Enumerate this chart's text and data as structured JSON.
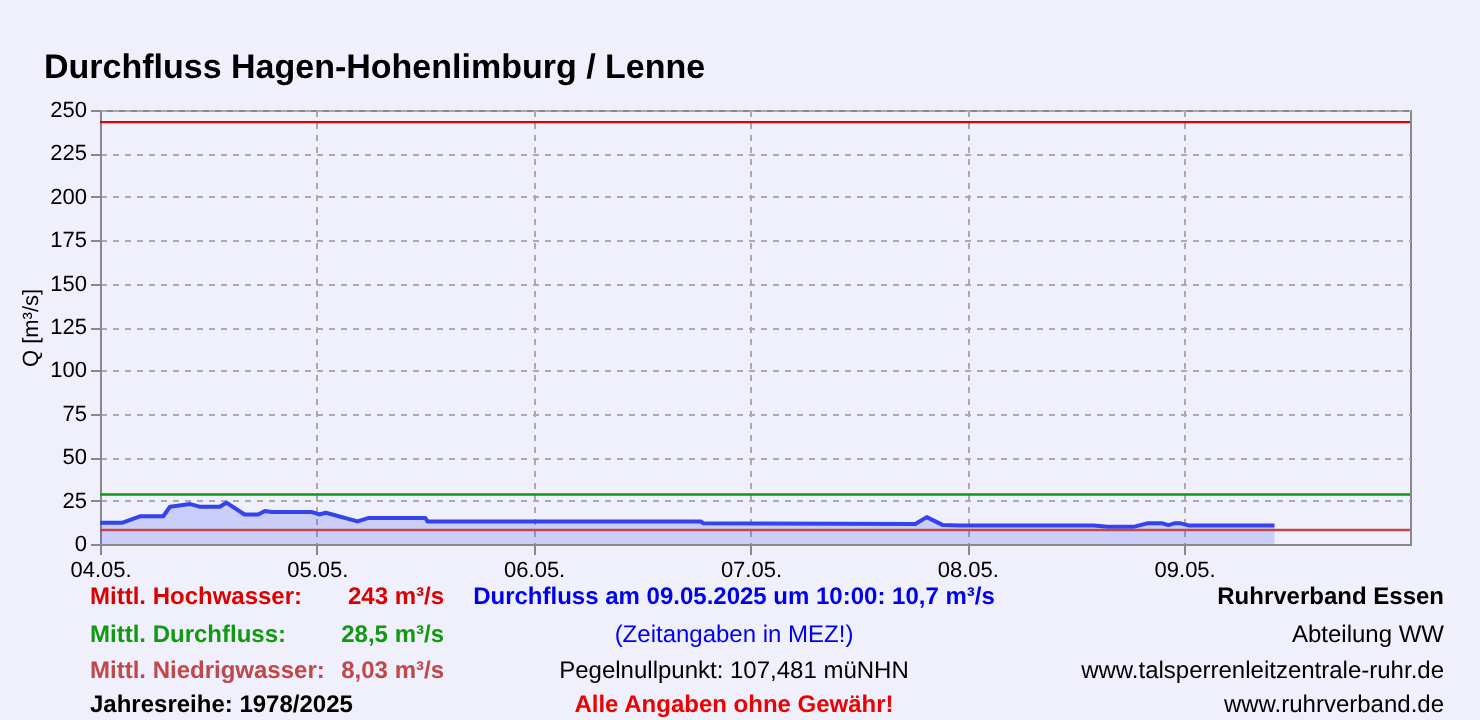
{
  "chart_data": {
    "type": "area",
    "title": "Durchfluss Hagen-Hohenlimburg / Lenne",
    "ylabel": "Q [m³/s]",
    "x": [
      "2025-05-04T00:00",
      "2025-05-04T02:30",
      "2025-05-04T04:30",
      "2025-05-04T07:00",
      "2025-05-04T07:45",
      "2025-05-04T10:00",
      "2025-05-04T11:00",
      "2025-05-04T13:15",
      "2025-05-04T14:00",
      "2025-05-04T16:00",
      "2025-05-04T17:30",
      "2025-05-04T18:15",
      "2025-05-04T19:00",
      "2025-05-04T23:30",
      "2025-05-05T00:15",
      "2025-05-05T01:00",
      "2025-05-05T04:30",
      "2025-05-05T05:45",
      "2025-05-05T12:00",
      "2025-05-05T12:15",
      "2025-05-06T18:30",
      "2025-05-06T18:45",
      "2025-05-07T18:15",
      "2025-05-07T19:30",
      "2025-05-07T21:15",
      "2025-05-07T23:15",
      "2025-05-08T14:00",
      "2025-05-08T15:30",
      "2025-05-08T18:30",
      "2025-05-08T20:00",
      "2025-05-08T21:30",
      "2025-05-08T22:15",
      "2025-05-08T23:00",
      "2025-05-08T23:30",
      "2025-05-09T00:30",
      "2025-05-09T10:00"
    ],
    "series": [
      {
        "color": "#3344ee",
        "values": [
          12.3,
          12.3,
          16,
          16,
          21.5,
          23,
          21.5,
          21.5,
          23.8,
          17,
          17,
          19,
          18.4,
          18.4,
          17,
          18,
          13,
          15,
          15,
          13,
          13,
          12,
          11.5,
          15.5,
          11,
          10.7,
          10.7,
          10,
          10,
          12,
          12,
          10.9,
          12,
          12,
          10.7,
          10.7
        ]
      }
    ],
    "xlim": [
      "2025-05-04T00:00",
      "2025-05-10T01:00"
    ],
    "xticks": [
      {
        "value": "2025-05-04",
        "label": "04.05."
      },
      {
        "value": "2025-05-05",
        "label": "05.05."
      },
      {
        "value": "2025-05-06",
        "label": "06.05."
      },
      {
        "value": "2025-05-07",
        "label": "07.05."
      },
      {
        "value": "2025-05-08",
        "label": "08.05."
      },
      {
        "value": "2025-05-09",
        "label": "09.05."
      }
    ],
    "ylim": [
      0,
      250
    ],
    "yticks": [
      0,
      25,
      50,
      75,
      100,
      125,
      150,
      175,
      200,
      225,
      250
    ],
    "grid": true,
    "ref_lines": [
      {
        "axis": "y",
        "value": 243,
        "label": "Mittl. Hochwasser:",
        "color": "#dd0000"
      },
      {
        "axis": "y",
        "value": 28.5,
        "label": "Mittl. Durchfluss:",
        "color": "#119911"
      },
      {
        "axis": "y",
        "value": 8.03,
        "label": "Mittl. Niedrigwasser:",
        "color": "#c04848"
      }
    ],
    "annotations": [
      "243 m³/s",
      "28,5 m³/s",
      "8,03 m³/s",
      "Jahresreihe: 1978/2025",
      "Durchfluss am 09.05.2025 um 10:00: 10,7 m³/s",
      "(Zeitangaben in MEZ!)",
      "Pegelnullpunkt:  107,481 müNHN",
      "Alle Angaben ohne Gewähr!",
      "Ruhrverband Essen",
      "Abteilung WW",
      "www.talsperrenleitzentrale-ruhr.de",
      "www.ruhrverband.de"
    ]
  }
}
